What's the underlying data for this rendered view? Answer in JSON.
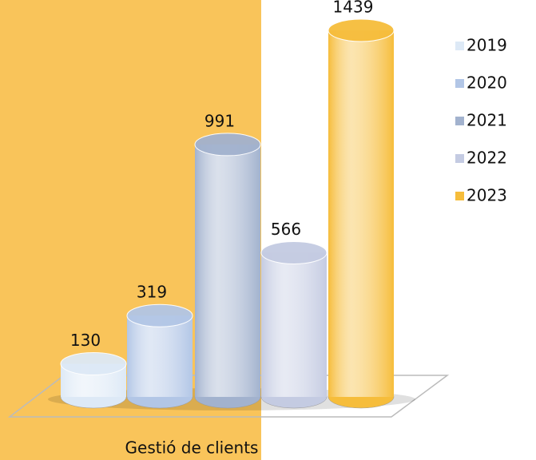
{
  "chart_data": {
    "type": "bar3d",
    "categories": [
      "Gestió de clients"
    ],
    "series": [
      {
        "name": "2019",
        "color": "#dde9f6",
        "values": [
          130
        ]
      },
      {
        "name": "2020",
        "color": "#b2c6e6",
        "values": [
          319
        ]
      },
      {
        "name": "2021",
        "color": "#a2b2ce",
        "values": [
          991
        ]
      },
      {
        "name": "2022",
        "color": "#c4cbe2",
        "values": [
          566
        ]
      },
      {
        "name": "2023",
        "color": "#f6bd3b",
        "values": [
          1439
        ]
      }
    ],
    "legend": "right"
  }
}
